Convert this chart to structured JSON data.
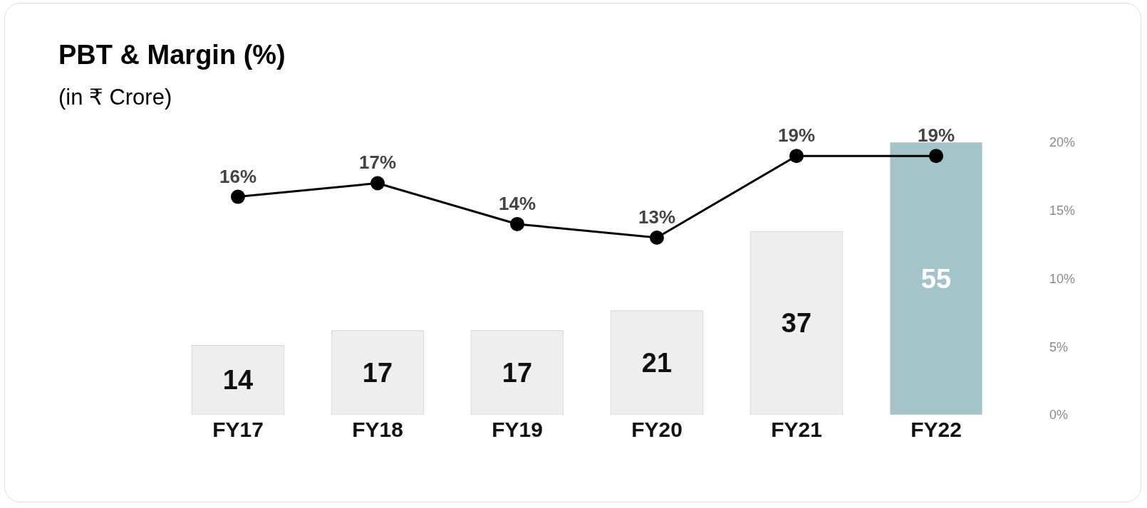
{
  "chart_data": {
    "type": "bar",
    "title": "PBT & Margin (%)",
    "subtitle": "(in ₹ Crore)",
    "categories": [
      "FY17",
      "FY18",
      "FY19",
      "FY20",
      "FY21",
      "FY22"
    ],
    "series": [
      {
        "colors": [
          "#eeeeee",
          "#eeeeee",
          "#eeeeee",
          "#eeeeee",
          "#eeeeee",
          "#a3c4c9"
        ],
        "values": [
          14,
          17,
          17,
          21,
          37,
          55
        ],
        "value_labels": [
          "14",
          "17",
          "17",
          "21",
          "37",
          "55"
        ]
      },
      {
        "type": "line",
        "axis": "y2",
        "color": "#000000",
        "values": [
          16,
          17,
          14,
          13,
          19,
          19
        ],
        "value_labels": [
          "16%",
          "17%",
          "14%",
          "13%",
          "19%",
          "19%"
        ],
        "marker": "circle",
        "line_style": "solid"
      }
    ],
    "relative": false,
    "y2lim": [
      0,
      20
    ],
    "y2ticks": [
      {
        "value": 0,
        "label": "0%"
      },
      {
        "value": 5,
        "label": "5%"
      },
      {
        "value": 10,
        "label": "10%"
      },
      {
        "value": 15,
        "label": "15%"
      },
      {
        "value": 20,
        "label": "20%"
      }
    ],
    "grid": false,
    "legend": false
  }
}
